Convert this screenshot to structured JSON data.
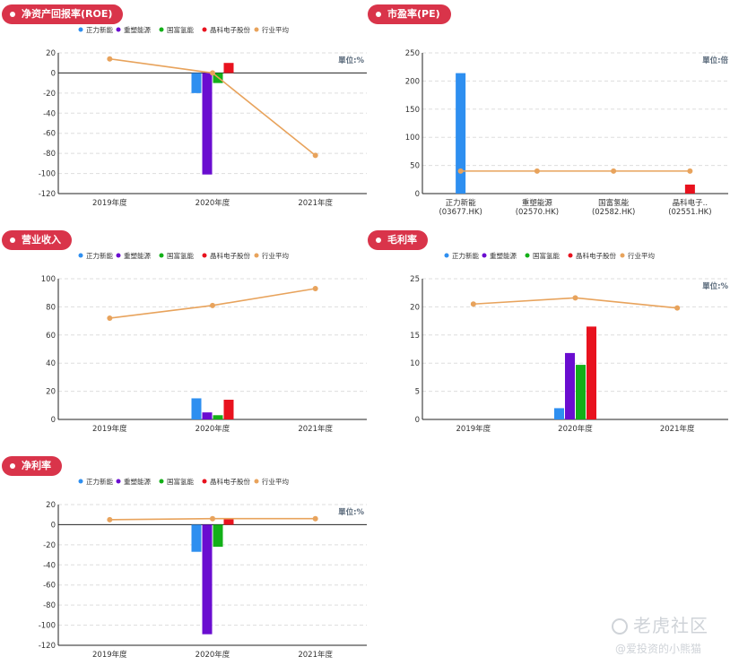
{
  "colors": {
    "pill": "#d9344a",
    "series": [
      "#2e8ff0",
      "#6a0dd0",
      "#13b018",
      "#e8121e"
    ],
    "industry_avg": "#e8a35c",
    "grid": "#dddddd",
    "axis_text": "#333333",
    "unit_text": "#5b6b7c"
  },
  "legend": [
    "正力新能",
    "重塑能源",
    "国富氢能",
    "晶科电子股份",
    "行业平均"
  ],
  "panels": {
    "roe": {
      "title": "净资产回报率(ROE)",
      "unit": "單位:%"
    },
    "pe": {
      "title": "市盈率(PE)",
      "unit": "單位:倍"
    },
    "revenue": {
      "title": "营业收入",
      "unit": ""
    },
    "gross_margin": {
      "title": "毛利率",
      "unit": "單位:%"
    },
    "net_margin": {
      "title": "净利率",
      "unit": "單位:%"
    }
  },
  "watermark": {
    "brand": "老虎社区",
    "author": "@爱投资的小熊猫"
  },
  "chart_data": [
    {
      "id": "roe",
      "type": "bar+line",
      "title": "净资产回报率(ROE)",
      "categories": [
        "2019年度",
        "2020年度",
        "2021年度"
      ],
      "ylim": [
        -120,
        20
      ],
      "yticks": [
        20,
        0,
        -20,
        -40,
        -60,
        -80,
        -100,
        -120
      ],
      "series": [
        {
          "name": "正力新能",
          "values": [
            null,
            -20,
            null
          ]
        },
        {
          "name": "重塑能源",
          "values": [
            null,
            -101,
            null
          ]
        },
        {
          "name": "国富氢能",
          "values": [
            null,
            -10,
            null
          ]
        },
        {
          "name": "晶科电子股份",
          "values": [
            null,
            10,
            null
          ]
        }
      ],
      "line": {
        "name": "行业平均",
        "values": [
          14,
          0,
          -82
        ]
      },
      "grid": true,
      "legend": "top"
    },
    {
      "id": "pe",
      "type": "bar+line",
      "title": "市盈率(PE)",
      "categories": [
        [
          "正力新能",
          "(03677.HK)"
        ],
        [
          "重塑能源",
          "(02570.HK)"
        ],
        [
          "国富氢能",
          "(02582.HK)"
        ],
        [
          "晶科电子..",
          "(02551.HK)"
        ]
      ],
      "ylim": [
        0,
        250
      ],
      "yticks": [
        250,
        200,
        150,
        100,
        50,
        0
      ],
      "bars": [
        214,
        null,
        null,
        16
      ],
      "line": {
        "name": "行业平均",
        "values": [
          40,
          40,
          40,
          40
        ]
      },
      "grid": true
    },
    {
      "id": "revenue",
      "type": "bar+line",
      "title": "营业收入",
      "categories": [
        "2019年度",
        "2020年度",
        "2021年度"
      ],
      "ylim": [
        0,
        100
      ],
      "yticks": [
        100,
        80,
        60,
        40,
        20,
        0
      ],
      "series": [
        {
          "name": "正力新能",
          "values": [
            null,
            15,
            null
          ]
        },
        {
          "name": "重塑能源",
          "values": [
            null,
            5,
            null
          ]
        },
        {
          "name": "国富氢能",
          "values": [
            null,
            3,
            null
          ]
        },
        {
          "name": "晶科电子股份",
          "values": [
            null,
            14,
            null
          ]
        }
      ],
      "line": {
        "name": "行业平均",
        "values": [
          72,
          81,
          93
        ]
      },
      "grid": true,
      "legend": "top"
    },
    {
      "id": "gross_margin",
      "type": "bar+line",
      "title": "毛利率",
      "categories": [
        "2019年度",
        "2020年度",
        "2021年度"
      ],
      "ylim": [
        0,
        25
      ],
      "yticks": [
        25,
        20,
        15,
        10,
        5,
        0
      ],
      "series": [
        {
          "name": "正力新能",
          "values": [
            null,
            2,
            null
          ]
        },
        {
          "name": "重塑能源",
          "values": [
            null,
            11.8,
            null
          ]
        },
        {
          "name": "国富氢能",
          "values": [
            null,
            9.7,
            null
          ]
        },
        {
          "name": "晶科电子股份",
          "values": [
            null,
            16.5,
            null
          ]
        }
      ],
      "line": {
        "name": "行业平均",
        "values": [
          20.5,
          21.6,
          19.8
        ]
      },
      "grid": true,
      "legend": "top"
    },
    {
      "id": "net_margin",
      "type": "bar+line",
      "title": "净利率",
      "categories": [
        "2019年度",
        "2020年度",
        "2021年度"
      ],
      "ylim": [
        -120,
        20
      ],
      "yticks": [
        20,
        0,
        -20,
        -40,
        -60,
        -80,
        -100,
        -120
      ],
      "series": [
        {
          "name": "正力新能",
          "values": [
            null,
            -27,
            null
          ]
        },
        {
          "name": "重塑能源",
          "values": [
            null,
            -109,
            null
          ]
        },
        {
          "name": "国富氢能",
          "values": [
            null,
            -22,
            null
          ]
        },
        {
          "name": "晶科电子股份",
          "values": [
            null,
            6,
            null
          ]
        }
      ],
      "line": {
        "name": "行业平均",
        "values": [
          5,
          6,
          6
        ]
      },
      "grid": true,
      "legend": "top"
    }
  ]
}
